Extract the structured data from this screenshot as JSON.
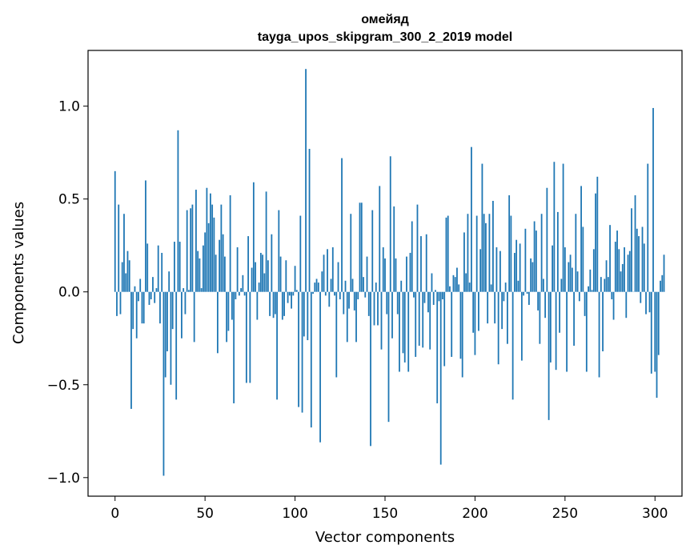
{
  "chart_data": {
    "type": "bar",
    "title": "омейяд",
    "subtitle": "tayga_upos_skipgram_300_2_2019 model",
    "xlabel": "Vector components",
    "ylabel": "Components values",
    "xlim": [
      -15,
      315
    ],
    "ylim": [
      -1.1,
      1.3
    ],
    "xticks": [
      0,
      50,
      100,
      150,
      200,
      250,
      300
    ],
    "yticks": [
      -1.0,
      -0.5,
      0.0,
      0.5,
      1.0
    ],
    "xtick_labels": [
      "0",
      "50",
      "100",
      "150",
      "200",
      "250",
      "300"
    ],
    "ytick_labels": [
      "−1.0",
      "−0.5",
      "0.0",
      "0.5",
      "1.0"
    ],
    "bar_color": "#1f77b4",
    "grid": false,
    "values": [
      0.65,
      -0.13,
      0.47,
      -0.12,
      0.16,
      0.42,
      0.1,
      0.22,
      0.17,
      -0.63,
      -0.2,
      0.03,
      -0.25,
      -0.05,
      0.07,
      -0.17,
      -0.17,
      0.6,
      0.26,
      -0.07,
      -0.04,
      0.08,
      -0.06,
      0.02,
      0.25,
      -0.17,
      0.21,
      -0.99,
      -0.46,
      -0.32,
      0.11,
      -0.5,
      -0.2,
      0.27,
      -0.58,
      0.87,
      0.27,
      -0.25,
      0.02,
      -0.12,
      0.44,
      0.01,
      0.45,
      0.47,
      -0.27,
      0.55,
      0.22,
      0.18,
      0.02,
      0.25,
      0.32,
      0.56,
      0.37,
      0.53,
      0.47,
      0.4,
      0.2,
      -0.33,
      0.28,
      0.47,
      0.31,
      0.19,
      -0.27,
      -0.21,
      0.52,
      -0.15,
      -0.6,
      -0.04,
      0.24,
      -0.02,
      0.02,
      0.09,
      -0.02,
      -0.49,
      0.3,
      -0.49,
      0.13,
      0.59,
      0.16,
      -0.15,
      0.05,
      0.21,
      0.2,
      0.1,
      0.54,
      0.17,
      -0.13,
      0.31,
      -0.14,
      -0.12,
      -0.58,
      0.44,
      0.19,
      -0.15,
      -0.13,
      0.17,
      -0.06,
      -0.02,
      -0.09,
      -0.02,
      0.14,
      0.01,
      -0.62,
      0.41,
      -0.65,
      -0.24,
      1.2,
      -0.26,
      0.77,
      -0.73,
      -0.01,
      0.05,
      0.07,
      0.05,
      -0.81,
      0.11,
      0.2,
      -0.02,
      0.23,
      -0.08,
      0.07,
      0.24,
      -0.02,
      -0.46,
      0.16,
      -0.04,
      0.72,
      -0.12,
      0.06,
      -0.27,
      -0.09,
      0.42,
      0.07,
      -0.1,
      -0.27,
      -0.04,
      0.48,
      0.48,
      0.08,
      -0.03,
      0.19,
      -0.13,
      -0.83,
      0.44,
      -0.18,
      0.05,
      -0.18,
      0.57,
      -0.31,
      0.24,
      0.18,
      -0.12,
      -0.7,
      0.73,
      -0.25,
      0.46,
      0.18,
      -0.12,
      -0.43,
      0.06,
      -0.33,
      -0.38,
      0.19,
      -0.43,
      0.21,
      0.38,
      -0.03,
      -0.35,
      0.47,
      -0.29,
      0.3,
      -0.3,
      -0.06,
      0.31,
      -0.11,
      -0.31,
      0.1,
      -0.07,
      0.01,
      -0.6,
      -0.05,
      -0.93,
      -0.04,
      -0.4,
      0.4,
      0.41,
      0.03,
      -0.35,
      0.09,
      0.08,
      0.13,
      0.04,
      -0.36,
      -0.46,
      0.32,
      0.1,
      0.42,
      0.05,
      0.78,
      -0.22,
      -0.34,
      0.41,
      -0.21,
      0.23,
      0.69,
      0.42,
      0.37,
      -0.17,
      0.42,
      0.04,
      0.49,
      -0.17,
      0.24,
      -0.39,
      0.22,
      -0.2,
      -0.05,
      0.05,
      -0.28,
      0.52,
      0.41,
      -0.58,
      0.21,
      0.28,
      0.06,
      0.26,
      -0.37,
      -0.02,
      0.34,
      -0.01,
      -0.07,
      0.18,
      0.16,
      0.38,
      0.33,
      -0.1,
      -0.28,
      0.42,
      0.07,
      -0.14,
      0.56,
      -0.69,
      -0.38,
      0.25,
      0.7,
      -0.42,
      0.43,
      -0.22,
      0.07,
      0.69,
      0.24,
      -0.43,
      0.16,
      0.2,
      0.13,
      -0.29,
      0.42,
      0.11,
      -0.05,
      0.57,
      0.35,
      -0.13,
      -0.43,
      0.03,
      0.12,
      0.01,
      0.23,
      0.53,
      0.62,
      -0.46,
      0.08,
      -0.32,
      0.07,
      0.17,
      0.08,
      0.36,
      -0.04,
      -0.15,
      0.27,
      0.33,
      0.23,
      0.11,
      0.15,
      0.24,
      -0.14,
      0.2,
      0.22,
      0.45,
      0.0,
      0.52,
      0.34,
      0.3,
      -0.06,
      0.35,
      0.26,
      -0.12,
      0.69,
      -0.11,
      -0.44,
      0.99,
      -0.43,
      -0.57,
      -0.34,
      0.06,
      0.09,
      0.2
    ]
  }
}
